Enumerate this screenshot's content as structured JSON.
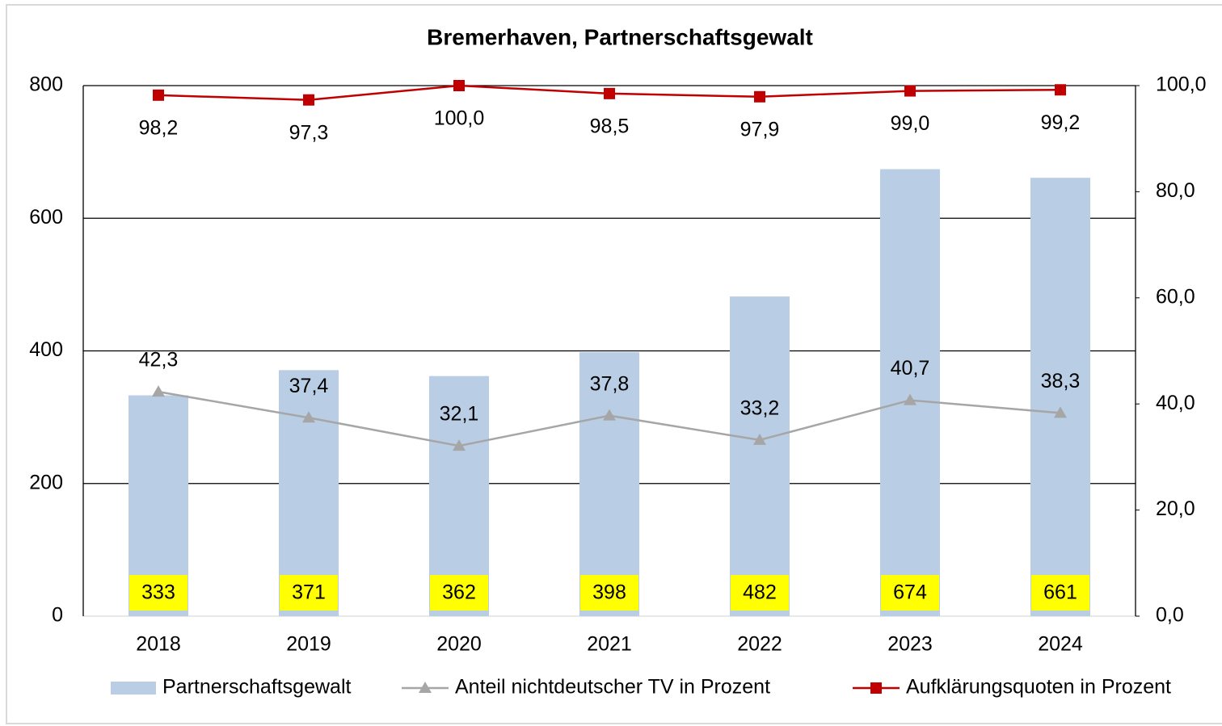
{
  "chart_data": {
    "type": "bar",
    "title": "Bremerhaven, Partnerschaftsgewalt",
    "categories": [
      "2018",
      "2019",
      "2020",
      "2021",
      "2022",
      "2023",
      "2024"
    ],
    "series": [
      {
        "name": "Partnerschaftsgewalt",
        "type": "bar",
        "color": "#b9cde5",
        "values": [
          333,
          371,
          362,
          398,
          482,
          674,
          661
        ]
      },
      {
        "name": "Anteil nichtdeutscher TV in Prozent",
        "type": "line",
        "axis": "y2",
        "color": "#a6a6a6",
        "marker": "triangle",
        "values": [
          42.3,
          37.4,
          32.1,
          37.8,
          33.2,
          40.7,
          38.3
        ],
        "value_labels": [
          "42,3",
          "37,4",
          "32,1",
          "37,8",
          "33,2",
          "40,7",
          "38,3"
        ]
      },
      {
        "name": "Aufklärungsquoten in Prozent",
        "type": "line",
        "axis": "y2",
        "color": "#c00000",
        "marker": "square",
        "values": [
          98.2,
          97.3,
          100.0,
          98.5,
          97.9,
          99.0,
          99.2
        ],
        "value_labels": [
          "98,2",
          "97,3",
          "100,0",
          "98,5",
          "97,9",
          "99,0",
          "99,2"
        ]
      }
    ],
    "ylim": [
      0,
      800
    ],
    "yticks": [
      0,
      200,
      400,
      600,
      800
    ],
    "y2lim": [
      0,
      100
    ],
    "y2ticks": [
      {
        "value": 0,
        "label": "0,0"
      },
      {
        "value": 20,
        "label": "20,0"
      },
      {
        "value": 40,
        "label": "40,0"
      },
      {
        "value": 60,
        "label": "60,0"
      },
      {
        "value": 80,
        "label": "80,0"
      },
      {
        "value": 100,
        "label": "100,0"
      }
    ],
    "grid": true,
    "legend": "bottom"
  }
}
